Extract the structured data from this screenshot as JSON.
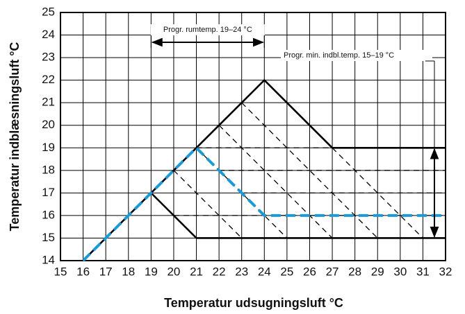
{
  "chart_data": {
    "type": "line",
    "x_label": "Temperatur udsugningsluft °C",
    "y_label": "Temperatur indblæsningsluft °C",
    "xlim": [
      15,
      32
    ],
    "ylim": [
      14,
      25
    ],
    "xticks": [
      15,
      16,
      17,
      18,
      19,
      20,
      21,
      22,
      23,
      24,
      25,
      26,
      27,
      28,
      29,
      30,
      31,
      32
    ],
    "yticks": [
      14,
      15,
      16,
      17,
      18,
      19,
      20,
      21,
      22,
      23,
      24,
      25
    ],
    "grid": true,
    "series": [
      {
        "color": "#000000",
        "dashed": false,
        "x": [
          16,
          24,
          27,
          32
        ],
        "values": [
          14,
          22,
          19,
          19
        ]
      },
      {
        "color": "#000000",
        "dashed": false,
        "x": [
          19,
          21,
          32
        ],
        "values": [
          17,
          15,
          15
        ]
      },
      {
        "color": "#000000",
        "dashed": true,
        "x": [
          20,
          23,
          null,
          21,
          25,
          null,
          22,
          27,
          null,
          23,
          29,
          null,
          27,
          31,
          null,
          21,
          27,
          null,
          22,
          32,
          null,
          23,
          32,
          null,
          20,
          32
        ],
        "values": [
          18,
          15,
          null,
          19,
          15,
          null,
          20,
          15,
          null,
          21,
          15,
          null,
          19,
          15,
          null,
          19,
          19,
          null,
          18,
          18,
          null,
          17,
          17,
          null,
          16,
          16
        ]
      },
      {
        "color": "#1a9ad6",
        "dashed": true,
        "x": [
          16,
          21,
          24,
          32
        ],
        "values": [
          14,
          19,
          16,
          16
        ]
      }
    ],
    "annotations": [
      {
        "text": "Progr. rumtemp. 19–24 °C",
        "x_range": [
          19,
          24
        ]
      },
      {
        "text": "Progr. min. indbl.temp. 15–19 °C",
        "y_range": [
          15,
          19
        ]
      }
    ]
  }
}
